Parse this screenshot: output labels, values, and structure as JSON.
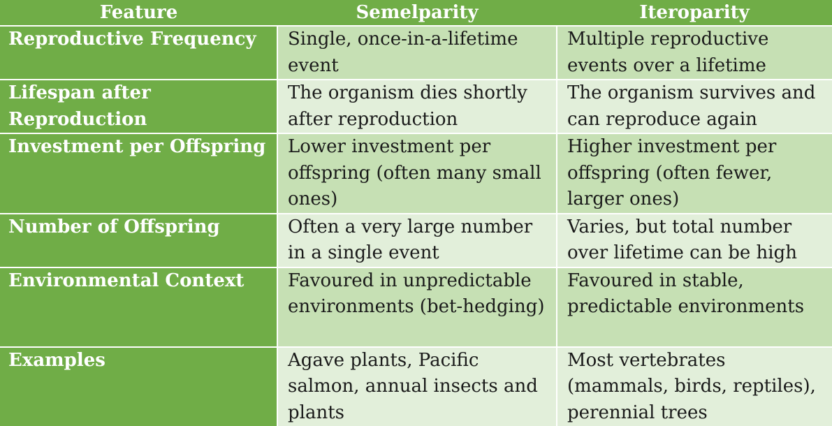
{
  "table": {
    "headers": [
      "Feature",
      "Semelparity",
      "Iteroparity"
    ],
    "rows": [
      {
        "feature": "Reproductive Frequency",
        "semelparity": "Single, once-in-a-lifetime event",
        "iteroparity": "Multiple reproductive events over a lifetime"
      },
      {
        "feature": "Lifespan after Reproduction",
        "semelparity": "The organism dies shortly after reproduction",
        "iteroparity": "The organism survives and can reproduce again"
      },
      {
        "feature": "Investment per Offspring",
        "semelparity": "Lower investment per offspring (often many small ones)",
        "iteroparity": "Higher investment per offspring (often fewer, larger ones)"
      },
      {
        "feature": "Number of Offspring",
        "semelparity": "Often a very large number in a single event",
        "iteroparity": "Varies, but total number over lifetime can be high"
      },
      {
        "feature": "Environmental Context",
        "semelparity": "Favoured in unpredictable environments (bet-hedging)",
        "iteroparity": "Favoured in stable, predictable environments"
      },
      {
        "feature": "Examples",
        "semelparity": "Agave plants, Pacific salmon, annual insects and plants",
        "iteroparity": "Most vertebrates (mammals, birds, reptiles), perennial trees"
      }
    ]
  },
  "colors": {
    "header": "#70ad47",
    "row_odd": "#c6e0b4",
    "row_even": "#e2efda",
    "header_text": "#ffffff"
  }
}
